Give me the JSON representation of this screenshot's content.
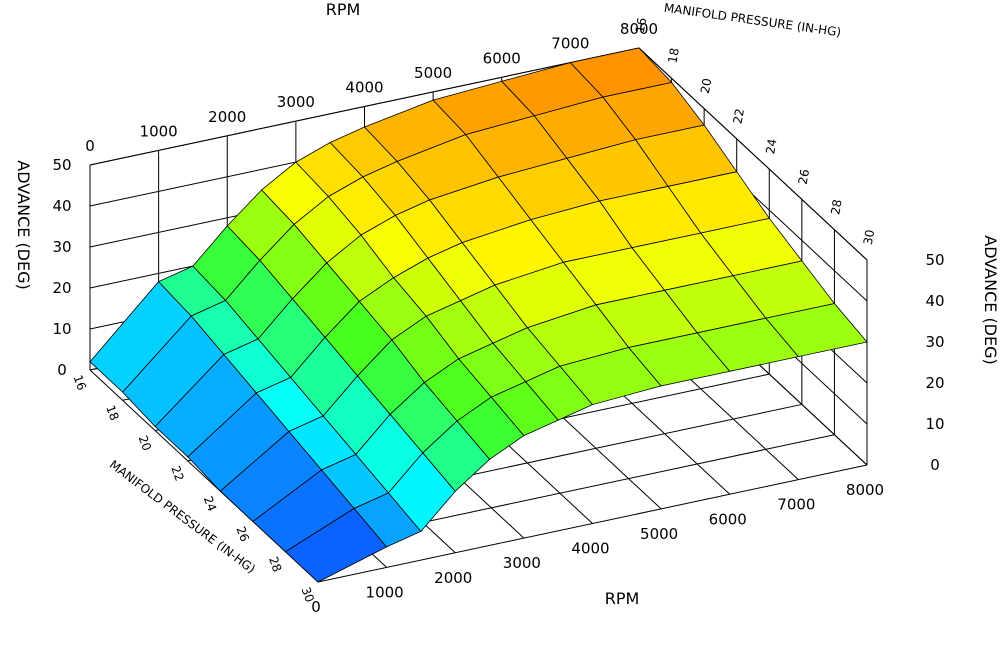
{
  "chart_data": {
    "type": "surface",
    "x": {
      "label": "RPM",
      "ticks": [
        "0",
        "1000",
        "2000",
        "3000",
        "4000",
        "5000",
        "6000",
        "7000",
        "8000"
      ]
    },
    "y": {
      "label": "MANIFOLD PRESSURE (IN-HG)",
      "ticks": [
        "16",
        "18",
        "20",
        "22",
        "24",
        "26",
        "28",
        "30"
      ]
    },
    "z": {
      "label": "ADVANCE (DEG)",
      "ticks": [
        "0",
        "10",
        "20",
        "30",
        "40",
        "50"
      ]
    },
    "xrange": [
      0,
      8000
    ],
    "yrange": [
      16,
      30
    ],
    "zrange": [
      0,
      50
    ],
    "rpm": [
      0,
      1000,
      1500,
      2000,
      2500,
      3000,
      3500,
      4000,
      5000,
      6000,
      7000,
      8000
    ],
    "map": [
      16,
      18,
      20,
      22,
      24,
      26,
      28,
      30
    ],
    "advance": [
      [
        2,
        18,
        20,
        28,
        35,
        40,
        43,
        45,
        48,
        49,
        50,
        50
      ],
      [
        2,
        17,
        19,
        27,
        34,
        39,
        42,
        44,
        47,
        48,
        49,
        49
      ],
      [
        1,
        15,
        17,
        25,
        32,
        37,
        40,
        42,
        44,
        45,
        46,
        46
      ],
      [
        1,
        13,
        15,
        23,
        30,
        34,
        37,
        39,
        41,
        42,
        42,
        42
      ],
      [
        0,
        11,
        13,
        21,
        28,
        32,
        34,
        36,
        38,
        38,
        38,
        38
      ],
      [
        0,
        9,
        11,
        19,
        25,
        29,
        31,
        33,
        35,
        35,
        35,
        35
      ],
      [
        0,
        7,
        9,
        17,
        23,
        27,
        29,
        31,
        32,
        32,
        32,
        32
      ],
      [
        0,
        5,
        7,
        15,
        21,
        25,
        27,
        29,
        30,
        30,
        30,
        30
      ]
    ],
    "colormap": [
      "#1030ff",
      "#00ffff",
      "#40ff20",
      "#ffff00",
      "#ff9000"
    ],
    "grid": true
  }
}
